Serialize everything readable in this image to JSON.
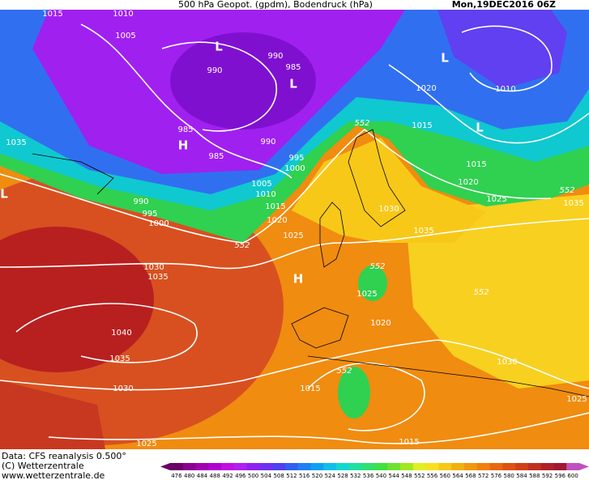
{
  "header": {
    "title": "500 hPa Geopot. (gpdm), Bodendruck (hPa)",
    "date": "Mon,19DEC2016 06Z"
  },
  "isobar_labels": [
    1015,
    1010,
    1005,
    990,
    990,
    985,
    985,
    985,
    990,
    995,
    1000,
    1005,
    1010,
    1015,
    1020,
    1025,
    990,
    995,
    1000,
    1035,
    1030,
    1035,
    1040,
    1035,
    1030,
    1025,
    1020,
    1015,
    1010,
    1015,
    1020,
    1025,
    1035,
    1030,
    1035,
    1025,
    1020,
    1015,
    1015,
    1030,
    1025
  ],
  "geopotential_labels": [
    552,
    552,
    552,
    552,
    552,
    552
  ],
  "pressure_centers": [
    "L",
    "L",
    "L",
    "L",
    "H",
    "H",
    "L"
  ],
  "footer": {
    "source": "Data: CFS reanalysis 0.500°",
    "copyright": "(C) Wetterzentrale",
    "website": "www.wetterzentrale.de"
  },
  "colorbar": {
    "labels": [
      476,
      480,
      484,
      488,
      492,
      496,
      500,
      504,
      508,
      512,
      516,
      520,
      524,
      528,
      532,
      536,
      540,
      544,
      548,
      552,
      556,
      560,
      564,
      568,
      572,
      576,
      580,
      584,
      588,
      592,
      596,
      600
    ],
    "colors": [
      "#6a0068",
      "#8a0090",
      "#a000b0",
      "#b000d0",
      "#c010e0",
      "#b020f0",
      "#9020f0",
      "#7030f0",
      "#5040f0",
      "#3060f0",
      "#2080f0",
      "#10a0f0",
      "#10c0e8",
      "#10d8d0",
      "#20e0a0",
      "#30e070",
      "#40e040",
      "#70e030",
      "#a0e820",
      "#e0f020",
      "#f8e020",
      "#f8c818",
      "#f0b010",
      "#f09810",
      "#f08010",
      "#e86810",
      "#e05010",
      "#d04018",
      "#c03020",
      "#b02028",
      "#a01830",
      "#c050c0"
    ]
  }
}
